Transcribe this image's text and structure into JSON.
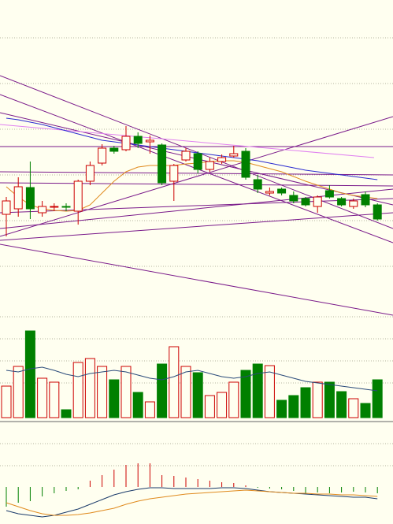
{
  "chart_data": [
    {
      "type": "candlestick",
      "ylim": [
        0,
        400
      ],
      "up_color": "#cc0000",
      "down_color": "#008000",
      "open": [
        128,
        135,
        162,
        130,
        137,
        138,
        132,
        170,
        193,
        212,
        210,
        227,
        220,
        216,
        170,
        197,
        205,
        185,
        195,
        202,
        208,
        172,
        155,
        160,
        152,
        148,
        138,
        158,
        148,
        138,
        153,
        140
      ],
      "close": [
        145,
        163,
        135,
        138,
        138,
        137,
        170,
        190,
        212,
        208,
        227,
        218,
        222,
        168,
        190,
        208,
        185,
        195,
        200,
        205,
        175,
        160,
        157,
        155,
        145,
        140,
        150,
        150,
        140,
        145,
        140,
        122
      ],
      "high": [
        150,
        175,
        195,
        145,
        142,
        142,
        172,
        195,
        217,
        215,
        240,
        232,
        228,
        218,
        192,
        212,
        208,
        200,
        204,
        215,
        212,
        178,
        162,
        162,
        157,
        150,
        152,
        165,
        150,
        148,
        157,
        142
      ],
      "low": [
        100,
        125,
        122,
        125,
        132,
        132,
        115,
        165,
        190,
        205,
        208,
        212,
        205,
        165,
        145,
        195,
        180,
        182,
        192,
        200,
        172,
        155,
        152,
        152,
        142,
        138,
        130,
        148,
        138,
        135,
        137,
        120
      ],
      "series": [
        {
          "color": "#e08a1e",
          "values": [
            163,
            150,
            140,
            135,
            133,
            132,
            133,
            140,
            155,
            170,
            182,
            188,
            190,
            190,
            190,
            192,
            193,
            195,
            196,
            196,
            194,
            190,
            186,
            182,
            176,
            170,
            165,
            160,
            155,
            152,
            150,
            148
          ]
        },
        {
          "color": "#2a2ad0",
          "values": [
            250,
            248,
            245,
            242,
            238,
            234,
            230,
            226,
            222,
            220,
            218,
            216,
            214,
            212,
            210,
            208,
            206,
            204,
            202,
            200,
            198,
            196,
            193,
            190,
            187,
            184,
            182,
            180,
            178,
            176,
            174,
            172
          ]
        }
      ]
    },
    {
      "type": "volume",
      "ylim": [
        0,
        130
      ],
      "values": [
        40,
        65,
        110,
        50,
        45,
        10,
        70,
        75,
        65,
        48,
        65,
        32,
        20,
        68,
        90,
        65,
        57,
        28,
        32,
        45,
        60,
        68,
        66,
        22,
        28,
        38,
        45,
        45,
        33,
        24,
        18,
        48
      ],
      "series": [
        {
          "color": "#2a4a7a",
          "values": [
            60,
            58,
            62,
            64,
            60,
            55,
            52,
            56,
            58,
            60,
            58,
            54,
            50,
            48,
            52,
            58,
            60,
            56,
            52,
            50,
            52,
            56,
            58,
            54,
            50,
            46,
            44,
            42,
            40,
            38,
            36,
            34
          ]
        }
      ]
    },
    {
      "type": "macd",
      "ylim": [
        -47,
        58
      ],
      "up_color": "#cc0000",
      "down_color": "#008000",
      "values": [
        -25,
        -20,
        -18,
        -12,
        -8,
        -5,
        -3,
        8,
        15,
        22,
        28,
        30,
        30,
        15,
        14,
        12,
        10,
        8,
        6,
        5,
        2,
        -1,
        -2,
        -3,
        -5,
        -8,
        -7,
        -8,
        -7,
        -6,
        -7,
        -8
      ],
      "series": [
        {
          "color": "#1a3a6a",
          "values": [
            -30,
            -34,
            -36,
            -38,
            -36,
            -32,
            -28,
            -22,
            -16,
            -10,
            -6,
            -3,
            -1,
            -1,
            -2,
            -2,
            -2,
            -2,
            -1,
            -1,
            -2,
            -4,
            -6,
            -7,
            -8,
            -9,
            -10,
            -11,
            -12,
            -13,
            -13,
            -15
          ]
        },
        {
          "color": "#e08a1e",
          "values": [
            -20,
            -25,
            -30,
            -34,
            -36,
            -36,
            -35,
            -33,
            -30,
            -27,
            -22,
            -18,
            -15,
            -13,
            -11,
            -9,
            -8,
            -7,
            -6,
            -5,
            -4,
            -5,
            -6,
            -7,
            -8,
            -8,
            -9,
            -9,
            -10,
            -10,
            -11,
            -12
          ]
        }
      ]
    }
  ]
}
